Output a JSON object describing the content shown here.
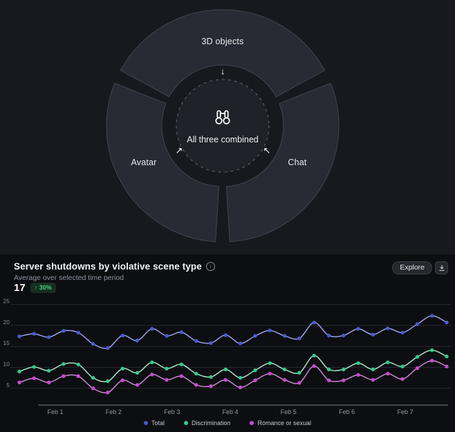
{
  "diagram": {
    "segments": [
      {
        "label": "3D objects"
      },
      {
        "label": "Avatar"
      },
      {
        "label": "Chat"
      }
    ],
    "center": {
      "icon": "binoculars-icon",
      "label": "All three combined"
    },
    "arrows": [
      {
        "name": "down-arrow",
        "glyph": "↓"
      },
      {
        "name": "up-right-arrow",
        "glyph": "↗"
      },
      {
        "name": "up-left-arrow",
        "glyph": "↖"
      }
    ],
    "colors": {
      "segment_fill": "#282b33",
      "segment_border": "#41454f",
      "center_fill": "#20222a",
      "dashed_border": "#565b66"
    }
  },
  "panel": {
    "title": "Server shutdowns by violative scene type",
    "info_glyph": "i",
    "explore_label": "Explore",
    "subtitle": "Average over selected time period",
    "average_value": "17",
    "delta_badge": "↑ 30%",
    "delta_color": "#45d483"
  },
  "chart_data": {
    "type": "line",
    "title": "Server shutdowns by violative scene type",
    "x_axis": {
      "labels": [
        "Feb 1",
        "Feb 2",
        "Feb 3",
        "Feb 4",
        "Feb 5",
        "Feb 6",
        "Feb 7"
      ]
    },
    "y_axis": {
      "ticks": [
        5,
        10,
        15,
        20,
        25
      ],
      "min": 1,
      "max": 26
    },
    "grid": true,
    "legend_position": "bottom",
    "series": [
      {
        "name": "Total",
        "dot_color": "#4b5bd6",
        "line_color": "#98a1e6",
        "values": [
          17.4,
          18,
          17.2,
          18.7,
          18.3,
          15.6,
          14.6,
          17.6,
          16.4,
          19.2,
          17.5,
          18.4,
          16.3,
          15.8,
          17.7,
          15.7,
          17.5,
          18.8,
          17.5,
          16.9,
          20.7,
          17.6,
          17.6,
          19.2,
          17.8,
          19.3,
          18.3,
          20.3,
          22.3,
          20.7
        ]
      },
      {
        "name": "Discrimination",
        "dot_color": "#2fcd8d",
        "line_color": "#a8e2c5",
        "values": [
          9,
          10.1,
          9.2,
          10.8,
          10.7,
          7.5,
          6.7,
          9.7,
          8.7,
          11.2,
          9.7,
          10.7,
          8.5,
          7.7,
          9.5,
          7.5,
          9.3,
          11,
          9.5,
          8.7,
          12.8,
          9.5,
          9.5,
          11,
          9.5,
          11.2,
          10.2,
          12.5,
          14.1,
          12.6
        ]
      },
      {
        "name": "Romance or sexual",
        "dot_color": "#cb4bd3",
        "line_color": "#c987d2",
        "values": [
          6.4,
          7.4,
          6.4,
          7.9,
          7.9,
          5,
          4,
          6.9,
          5.8,
          8.3,
          7,
          7.9,
          5.8,
          5.5,
          7,
          5.2,
          6.9,
          8.5,
          7,
          6.3,
          10.3,
          6.9,
          6.9,
          8.2,
          7,
          8.5,
          7.2,
          9.8,
          11.6,
          10.2
        ]
      }
    ]
  }
}
